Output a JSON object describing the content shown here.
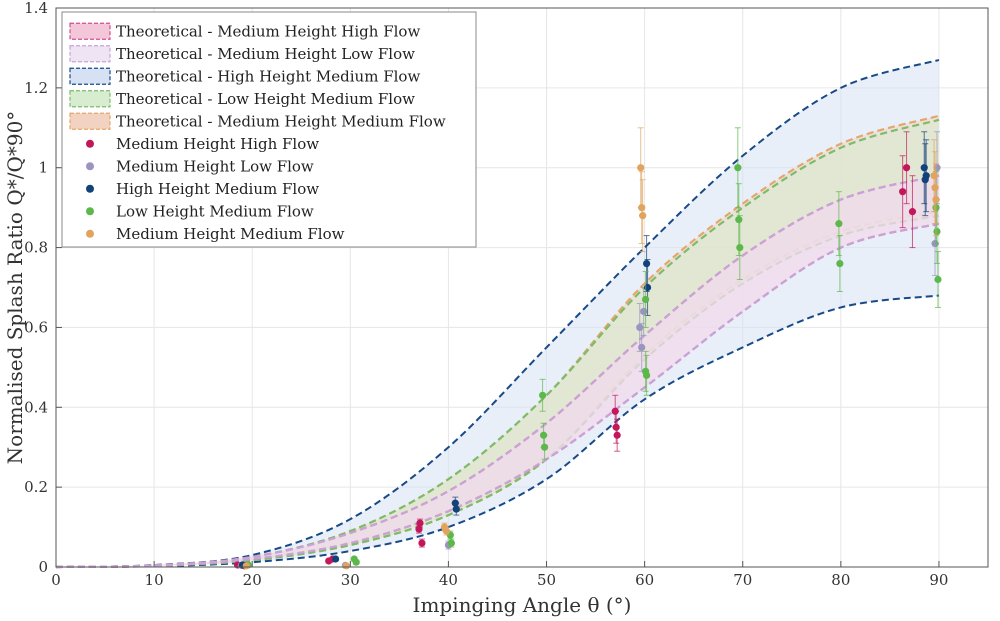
{
  "chart_data": {
    "type": "scatter",
    "xlabel": "Impinging Angle θ (°)",
    "ylabel": "Normalised Splash Ratio Q*/Q*90°",
    "xlim": [
      0,
      95
    ],
    "ylim": [
      0,
      1.4
    ],
    "xticks": [
      "0",
      "10",
      "20",
      "30",
      "40",
      "50",
      "60",
      "70",
      "80",
      "90"
    ],
    "yticks": [
      "0",
      "0.2",
      "0.4",
      "0.6",
      "0.8",
      "1",
      "1.2",
      "1.4"
    ],
    "grid": true,
    "legend_position": "top-left",
    "theory_x": [
      0,
      10,
      20,
      30,
      40,
      50,
      60,
      70,
      80,
      90
    ],
    "bands": [
      {
        "name": "Theoretical - Medium Height High Flow",
        "style": "dashed-band",
        "color": "#d0508c",
        "fill": "#f4c6da",
        "upper": [
          0,
          0.004,
          0.025,
          0.085,
          0.19,
          0.36,
          0.58,
          0.78,
          0.92,
          0.98
        ],
        "lower": [
          0,
          0.003,
          0.02,
          0.06,
          0.14,
          0.27,
          0.45,
          0.64,
          0.8,
          0.86
        ]
      },
      {
        "name": "Theoretical - Medium Height Low Flow",
        "style": "dashed-band",
        "color": "#c9a3d6",
        "fill": "#efe4f4",
        "upper": [
          0,
          0.004,
          0.025,
          0.085,
          0.19,
          0.36,
          0.58,
          0.78,
          0.92,
          0.98
        ],
        "lower": [
          0,
          0.003,
          0.02,
          0.06,
          0.14,
          0.27,
          0.45,
          0.64,
          0.8,
          0.86
        ]
      },
      {
        "name": "Theoretical - High Height Medium Flow",
        "style": "dashed-band",
        "color": "#174a86",
        "fill": "#d6e2f4",
        "upper": [
          0,
          0.005,
          0.03,
          0.12,
          0.3,
          0.55,
          0.8,
          1.03,
          1.2,
          1.27
        ],
        "lower": [
          0,
          0.002,
          0.012,
          0.04,
          0.1,
          0.22,
          0.42,
          0.55,
          0.65,
          0.68
        ]
      },
      {
        "name": "Theoretical - Low Height Medium Flow",
        "style": "dashed-band",
        "color": "#7cbc6a",
        "fill": "#d8ecd0",
        "upper": [
          0,
          0.004,
          0.025,
          0.09,
          0.22,
          0.43,
          0.7,
          0.9,
          1.05,
          1.12
        ],
        "lower": [
          0,
          0.003,
          0.017,
          0.055,
          0.13,
          0.27,
          0.52,
          0.71,
          0.83,
          0.88
        ]
      },
      {
        "name": "Theoretical - Medium Height Medium Flow",
        "style": "dashed-band",
        "color": "#e3a76a",
        "fill": "#f2d3c1",
        "upper": [
          0,
          0.004,
          0.025,
          0.09,
          0.22,
          0.43,
          0.71,
          0.91,
          1.06,
          1.13
        ],
        "lower": [
          0,
          0.003,
          0.017,
          0.055,
          0.13,
          0.27,
          0.53,
          0.72,
          0.84,
          0.89
        ]
      }
    ],
    "series": [
      {
        "name": "Medium Height High Flow",
        "color": "#c2185b",
        "points": [
          [
            18.5,
            0.005,
            0.005
          ],
          [
            19.2,
            0.003,
            0.004
          ],
          [
            27.8,
            0.015,
            0.005
          ],
          [
            28.2,
            0.02,
            0.005
          ],
          [
            37,
            0.095,
            0.01
          ],
          [
            37.1,
            0.11,
            0.01
          ],
          [
            37.3,
            0.06,
            0.01
          ],
          [
            57,
            0.39,
            0.04
          ],
          [
            57.1,
            0.35,
            0.04
          ],
          [
            57.2,
            0.33,
            0.04
          ],
          [
            86.3,
            0.94,
            0.09
          ],
          [
            86.7,
            1.0,
            0.09
          ],
          [
            87.3,
            0.89,
            0.09
          ]
        ]
      },
      {
        "name": "Medium Height Low Flow",
        "color": "#9a94c0",
        "points": [
          [
            18.9,
            0.004,
            0.004
          ],
          [
            29.5,
            0.004,
            0.004
          ],
          [
            40,
            0.055,
            0.01
          ],
          [
            59.5,
            0.6,
            0.06
          ],
          [
            59.7,
            0.55,
            0.06
          ],
          [
            59.9,
            0.64,
            0.06
          ],
          [
            89.6,
            0.81,
            0.08
          ],
          [
            89.8,
            1.0,
            0.09
          ]
        ]
      },
      {
        "name": "High Height Medium Flow",
        "color": "#12427a",
        "points": [
          [
            19,
            0.005,
            0.004
          ],
          [
            28.5,
            0.02,
            0.005
          ],
          [
            40.7,
            0.16,
            0.015
          ],
          [
            40.8,
            0.145,
            0.015
          ],
          [
            60.2,
            0.76,
            0.07
          ],
          [
            60.3,
            0.7,
            0.07
          ],
          [
            88.5,
            1.0,
            0.09
          ],
          [
            88.6,
            0.97,
            0.09
          ],
          [
            88.7,
            0.98,
            0.09
          ]
        ]
      },
      {
        "name": "Low Height Medium Flow",
        "color": "#5cb84a",
        "points": [
          [
            19.6,
            0.005,
            0.004
          ],
          [
            30.4,
            0.02,
            0.005
          ],
          [
            30.6,
            0.012,
            0.005
          ],
          [
            40.2,
            0.08,
            0.01
          ],
          [
            40.3,
            0.06,
            0.01
          ],
          [
            49.6,
            0.43,
            0.04
          ],
          [
            49.7,
            0.33,
            0.03
          ],
          [
            49.8,
            0.3,
            0.03
          ],
          [
            60.1,
            0.49,
            0.05
          ],
          [
            60.2,
            0.48,
            0.05
          ],
          [
            60.1,
            0.67,
            0.07
          ],
          [
            69.5,
            1.0,
            0.1
          ],
          [
            69.6,
            0.87,
            0.09
          ],
          [
            69.7,
            0.8,
            0.08
          ],
          [
            79.8,
            0.86,
            0.08
          ],
          [
            79.9,
            0.76,
            0.07
          ],
          [
            89.7,
            0.9,
            0.09
          ],
          [
            89.8,
            0.84,
            0.08
          ],
          [
            89.9,
            0.72,
            0.07
          ]
        ]
      },
      {
        "name": "Medium Height Medium Flow",
        "color": "#e0a45e",
        "points": [
          [
            19.4,
            0.003,
            0.004
          ],
          [
            29.6,
            0.003,
            0.004
          ],
          [
            39.6,
            0.1,
            0.01
          ],
          [
            39.8,
            0.09,
            0.01
          ],
          [
            59.6,
            1.0,
            0.1
          ],
          [
            59.7,
            0.9,
            0.09
          ],
          [
            59.8,
            0.88,
            0.09
          ],
          [
            89.5,
            0.98,
            0.09
          ],
          [
            89.6,
            0.95,
            0.09
          ],
          [
            89.7,
            0.92,
            0.09
          ]
        ]
      }
    ]
  }
}
